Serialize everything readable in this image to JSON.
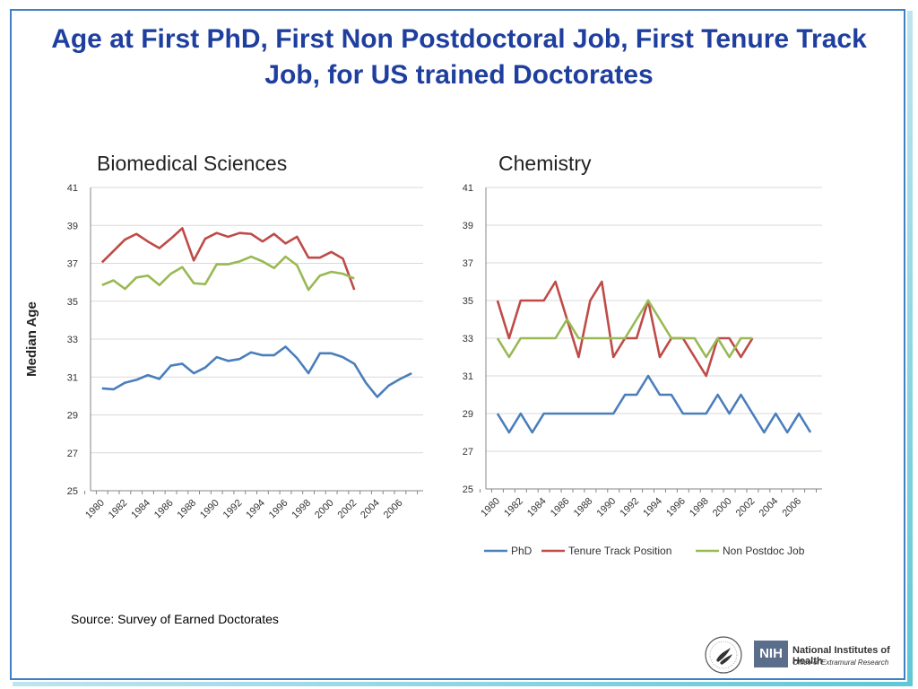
{
  "page": {
    "title": "Age at First PhD, First Non Postdoctoral Job, First Tenure Track Job, for US trained Doctorates",
    "source": "Source: Survey of Earned Doctorates",
    "nih_badge": "NIH",
    "nih_name": "National Institutes of Health",
    "nih_office": "Office of Extramural Research"
  },
  "colors": {
    "phd": "#4a7ebb",
    "tenure": "#be4b48",
    "nonpostdoc": "#98b954",
    "title": "#1f3f9e",
    "grid": "#d9d9d9"
  },
  "icons": [
    "hhs-seal-icon",
    "nih-logo-icon"
  ],
  "chart_data": [
    {
      "type": "line",
      "title": "Biomedical Sciences",
      "ylabel": "Median Age",
      "xlabel": "",
      "ylim": [
        25,
        41
      ],
      "yticks": [
        25,
        27,
        29,
        31,
        33,
        35,
        37,
        39,
        41
      ],
      "xlim": [
        1979,
        2008
      ],
      "xticks": [
        1980,
        1982,
        1984,
        1986,
        1988,
        1990,
        1992,
        1994,
        1996,
        1998,
        2000,
        2002,
        2004,
        2006
      ],
      "grid": true,
      "legend": "none",
      "series": [
        {
          "name": "PhD",
          "x": [
            1980,
            1981,
            1982,
            1983,
            1984,
            1985,
            1986,
            1987,
            1988,
            1989,
            1990,
            1991,
            1992,
            1993,
            1994,
            1995,
            1996,
            1997,
            1998,
            1999,
            2000,
            2001,
            2002,
            2003,
            2004,
            2005,
            2006,
            2007
          ],
          "values": [
            30.4,
            30.35,
            30.7,
            30.85,
            31.1,
            30.9,
            31.6,
            31.7,
            31.2,
            31.5,
            32.05,
            31.85,
            31.95,
            32.3,
            32.15,
            32.15,
            32.6,
            32.0,
            31.2,
            32.25,
            32.25,
            32.05,
            31.7,
            30.7,
            29.95,
            30.55,
            30.9,
            31.2
          ]
        },
        {
          "name": "Tenure Track Position",
          "x": [
            1980,
            1981,
            1982,
            1983,
            1984,
            1985,
            1986,
            1987,
            1988,
            1989,
            1990,
            1991,
            1992,
            1993,
            1994,
            1995,
            1996,
            1997,
            1998,
            1999,
            2000,
            2001,
            2002
          ],
          "values": [
            37.05,
            37.65,
            38.25,
            38.55,
            38.15,
            37.8,
            38.3,
            38.85,
            37.15,
            38.3,
            38.6,
            38.4,
            38.6,
            38.55,
            38.15,
            38.55,
            38.05,
            38.4,
            37.3,
            37.3,
            37.6,
            37.25,
            35.6
          ]
        },
        {
          "name": "Non Postdoc Job",
          "x": [
            1980,
            1981,
            1982,
            1983,
            1984,
            1985,
            1986,
            1987,
            1988,
            1989,
            1990,
            1991,
            1992,
            1993,
            1994,
            1995,
            1996,
            1997,
            1998,
            1999,
            2000,
            2001,
            2002
          ],
          "values": [
            35.85,
            36.1,
            35.65,
            36.25,
            36.35,
            35.85,
            36.45,
            36.8,
            35.95,
            35.9,
            36.95,
            36.95,
            37.1,
            37.35,
            37.1,
            36.75,
            37.35,
            36.9,
            35.6,
            36.35,
            36.55,
            36.45,
            36.2
          ]
        }
      ]
    },
    {
      "type": "line",
      "title": "Chemistry",
      "xlabel": "",
      "ylabel": "",
      "ylim": [
        25,
        41
      ],
      "yticks": [
        25,
        27,
        29,
        31,
        33,
        35,
        37,
        39,
        41
      ],
      "xlim": [
        1979,
        2008
      ],
      "xticks": [
        1980,
        1982,
        1984,
        1986,
        1988,
        1990,
        1992,
        1994,
        1996,
        1998,
        2000,
        2002,
        2004,
        2006
      ],
      "grid": true,
      "legend": "bottom",
      "series": [
        {
          "name": "PhD",
          "x": [
            1980,
            1981,
            1982,
            1983,
            1984,
            1985,
            1986,
            1987,
            1988,
            1989,
            1990,
            1991,
            1992,
            1993,
            1994,
            1995,
            1996,
            1997,
            1998,
            1999,
            2000,
            2001,
            2002,
            2003,
            2004,
            2005,
            2006,
            2007
          ],
          "values": [
            29,
            28,
            29,
            28,
            29,
            29,
            29,
            29,
            29,
            29,
            29,
            30,
            30,
            31,
            30,
            30,
            29,
            29,
            29,
            30,
            29,
            30,
            29,
            28,
            29,
            28,
            29,
            28
          ]
        },
        {
          "name": "Tenure Track Position",
          "x": [
            1980,
            1981,
            1982,
            1983,
            1984,
            1985,
            1986,
            1987,
            1988,
            1989,
            1990,
            1991,
            1992,
            1993,
            1994,
            1995,
            1996,
            1997,
            1998,
            1999,
            2000,
            2001,
            2002
          ],
          "values": [
            35,
            33,
            35,
            35,
            35,
            36,
            34,
            32,
            35,
            36,
            32,
            33,
            33,
            35,
            32,
            33,
            33,
            32,
            31,
            33,
            33,
            32,
            33
          ]
        },
        {
          "name": "Non Postdoc Job",
          "x": [
            1980,
            1981,
            1982,
            1983,
            1984,
            1985,
            1986,
            1987,
            1988,
            1989,
            1990,
            1991,
            1992,
            1993,
            1994,
            1995,
            1996,
            1997,
            1998,
            1999,
            2000,
            2001,
            2002
          ],
          "values": [
            33,
            32,
            33,
            33,
            33,
            33,
            34,
            33,
            33,
            33,
            33,
            33,
            34,
            35,
            34,
            33,
            33,
            33,
            32,
            33,
            32,
            33,
            33
          ]
        }
      ]
    }
  ]
}
